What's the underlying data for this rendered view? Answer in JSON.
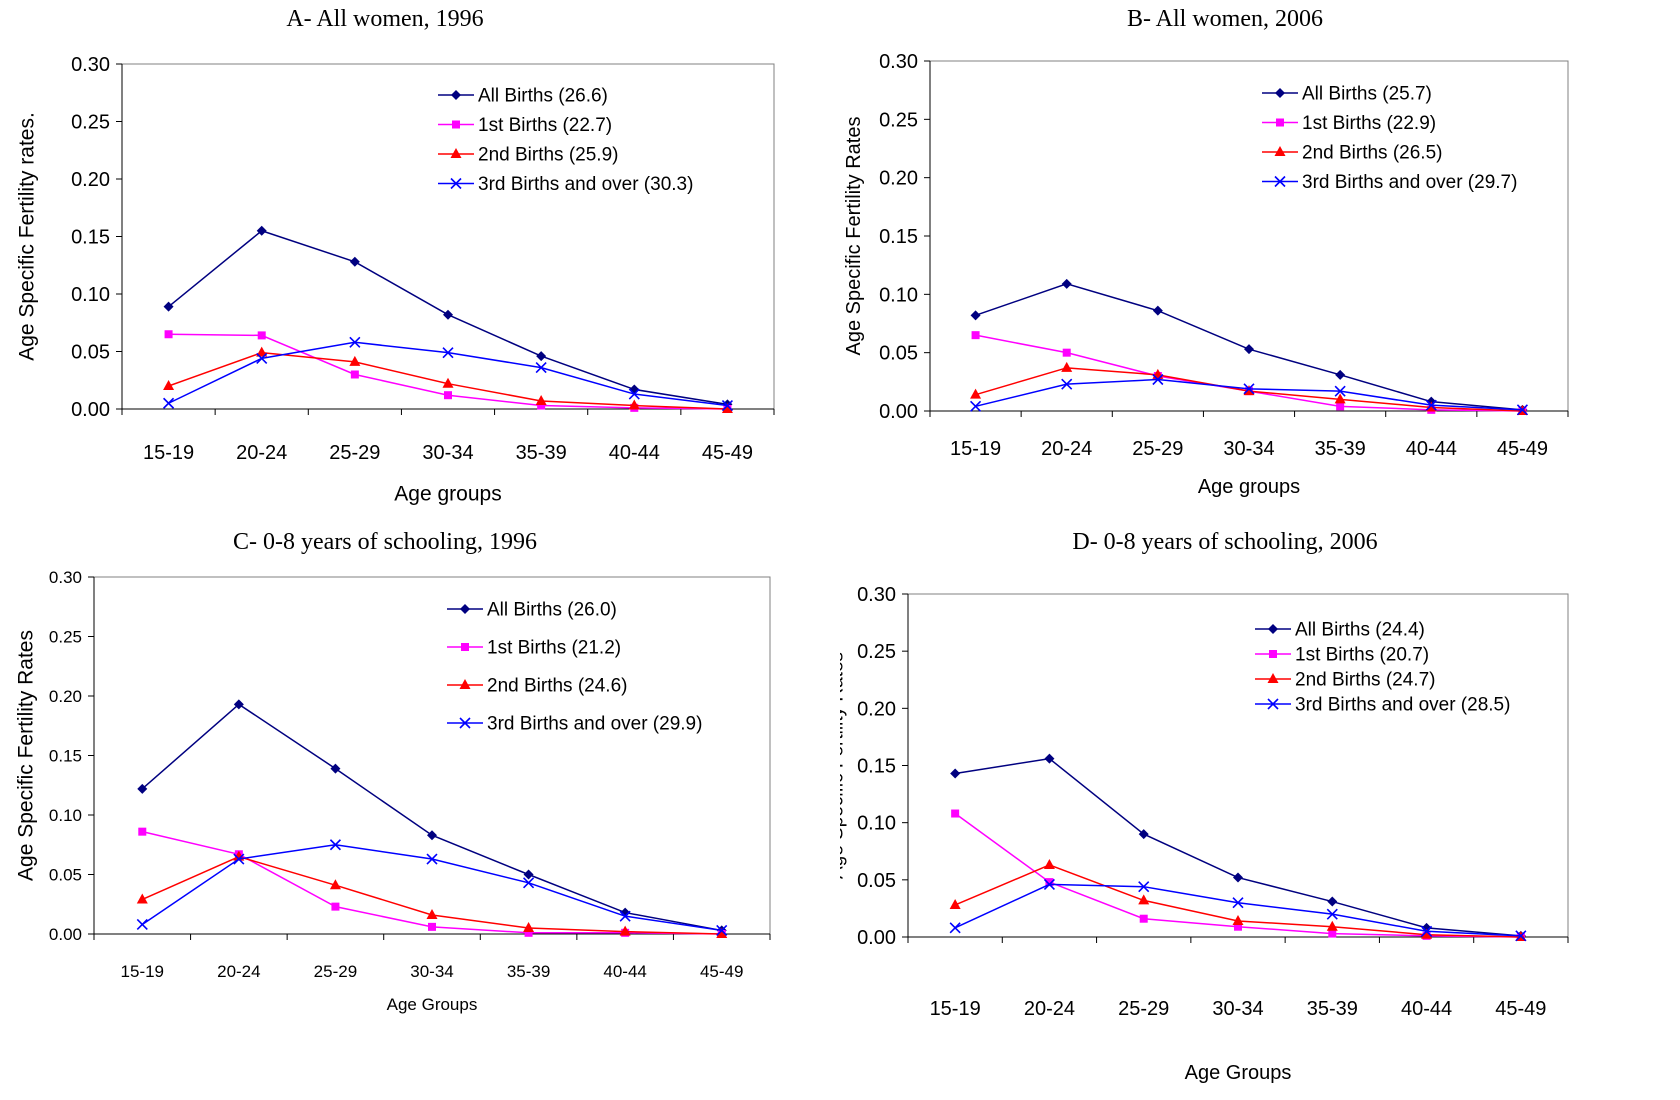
{
  "chart_data": [
    {
      "type": "line",
      "title": "A- All women, 1996",
      "xlabel": "Age groups",
      "ylabel": "Age Specific Fertility rates.",
      "categories": [
        "15-19",
        "20-24",
        "25-29",
        "30-34",
        "35-39",
        "40-44",
        "45-49"
      ],
      "ylim": [
        0,
        0.3
      ],
      "yticks": [
        "0.00",
        "0.05",
        "0.10",
        "0.15",
        "0.20",
        "0.25",
        "0.30"
      ],
      "legend_position": "top-right",
      "series": [
        {
          "name": "All Births (26.6)",
          "color": "#000080",
          "marker": "diamond",
          "values": [
            0.089,
            0.155,
            0.128,
            0.082,
            0.046,
            0.017,
            0.004
          ]
        },
        {
          "name": "1st Births (22.7)",
          "color": "#ff00ff",
          "marker": "square",
          "values": [
            0.065,
            0.064,
            0.03,
            0.012,
            0.003,
            0.001,
            0.0
          ]
        },
        {
          "name": "2nd Births (25.9)",
          "color": "#ff0000",
          "marker": "triangle",
          "values": [
            0.02,
            0.049,
            0.041,
            0.022,
            0.007,
            0.003,
            0.0
          ]
        },
        {
          "name": "3rd Births and over (30.3)",
          "color": "#0000ff",
          "marker": "x",
          "values": [
            0.005,
            0.044,
            0.058,
            0.049,
            0.036,
            0.013,
            0.003
          ]
        }
      ]
    },
    {
      "type": "line",
      "title": "B- All women, 2006",
      "xlabel": "Age groups",
      "ylabel": "Age Specific Fertility Rates",
      "categories": [
        "15-19",
        "20-24",
        "25-29",
        "30-34",
        "35-39",
        "40-44",
        "45-49"
      ],
      "ylim": [
        0,
        0.3
      ],
      "yticks": [
        "0.00",
        "0.05",
        "0.10",
        "0.15",
        "0.20",
        "0.25",
        "0.30"
      ],
      "legend_position": "top-right",
      "series": [
        {
          "name": "All Births (25.7)",
          "color": "#000080",
          "marker": "diamond",
          "values": [
            0.082,
            0.109,
            0.086,
            0.053,
            0.031,
            0.008,
            0.001
          ]
        },
        {
          "name": "1st Births (22.9)",
          "color": "#ff00ff",
          "marker": "square",
          "values": [
            0.065,
            0.05,
            0.03,
            0.017,
            0.004,
            0.001,
            0.0
          ]
        },
        {
          "name": "2nd Births (26.5)",
          "color": "#ff0000",
          "marker": "triangle",
          "values": [
            0.014,
            0.037,
            0.031,
            0.017,
            0.01,
            0.003,
            0.0
          ]
        },
        {
          "name": "3rd Births and over (29.7)",
          "color": "#0000ff",
          "marker": "x",
          "values": [
            0.004,
            0.023,
            0.027,
            0.019,
            0.017,
            0.005,
            0.001
          ]
        }
      ]
    },
    {
      "type": "line",
      "title": "C- 0-8 years of schooling, 1996",
      "xlabel": "Age Groups",
      "ylabel": "Age Specific Fertility Rates",
      "categories": [
        "15-19",
        "20-24",
        "25-29",
        "30-34",
        "35-39",
        "40-44",
        "45-49"
      ],
      "ylim": [
        0,
        0.3
      ],
      "yticks": [
        "0.00",
        "0.05",
        "0.10",
        "0.15",
        "0.20",
        "0.25",
        "0.30"
      ],
      "legend_position": "top-right",
      "series": [
        {
          "name": "All Births (26.0)",
          "color": "#000080",
          "marker": "diamond",
          "values": [
            0.122,
            0.193,
            0.139,
            0.083,
            0.05,
            0.018,
            0.003
          ]
        },
        {
          "name": "1st Births (21.2)",
          "color": "#ff00ff",
          "marker": "square",
          "values": [
            0.086,
            0.067,
            0.023,
            0.006,
            0.001,
            0.001,
            0.0
          ]
        },
        {
          "name": "2nd Births (24.6)",
          "color": "#ff0000",
          "marker": "triangle",
          "values": [
            0.029,
            0.065,
            0.041,
            0.016,
            0.005,
            0.002,
            0.0
          ]
        },
        {
          "name": "3rd Births and over (29.9)",
          "color": "#0000ff",
          "marker": "x",
          "values": [
            0.008,
            0.063,
            0.075,
            0.063,
            0.043,
            0.015,
            0.003
          ]
        }
      ]
    },
    {
      "type": "line",
      "title": "D- 0-8 years of schooling, 2006",
      "xlabel": "Age Groups",
      "ylabel": "Age Specific Fertility Rates",
      "categories": [
        "15-19",
        "20-24",
        "25-29",
        "30-34",
        "35-39",
        "40-44",
        "45-49"
      ],
      "ylim": [
        0,
        0.3
      ],
      "yticks": [
        "0.00",
        "0.05",
        "0.10",
        "0.15",
        "0.20",
        "0.25",
        "0.30"
      ],
      "legend_position": "top-right",
      "series": [
        {
          "name": "All Births (24.4)",
          "color": "#000080",
          "marker": "diamond",
          "values": [
            0.143,
            0.156,
            0.09,
            0.052,
            0.031,
            0.008,
            0.001
          ]
        },
        {
          "name": "1st Births (20.7)",
          "color": "#ff00ff",
          "marker": "square",
          "values": [
            0.108,
            0.048,
            0.016,
            0.009,
            0.003,
            0.001,
            0.0
          ]
        },
        {
          "name": "2nd Births (24.7)",
          "color": "#ff0000",
          "marker": "triangle",
          "values": [
            0.028,
            0.063,
            0.032,
            0.014,
            0.009,
            0.002,
            0.0
          ]
        },
        {
          "name": "3rd Births and over (28.5)",
          "color": "#0000ff",
          "marker": "x",
          "values": [
            0.008,
            0.046,
            0.044,
            0.03,
            0.02,
            0.005,
            0.001
          ]
        }
      ]
    }
  ]
}
